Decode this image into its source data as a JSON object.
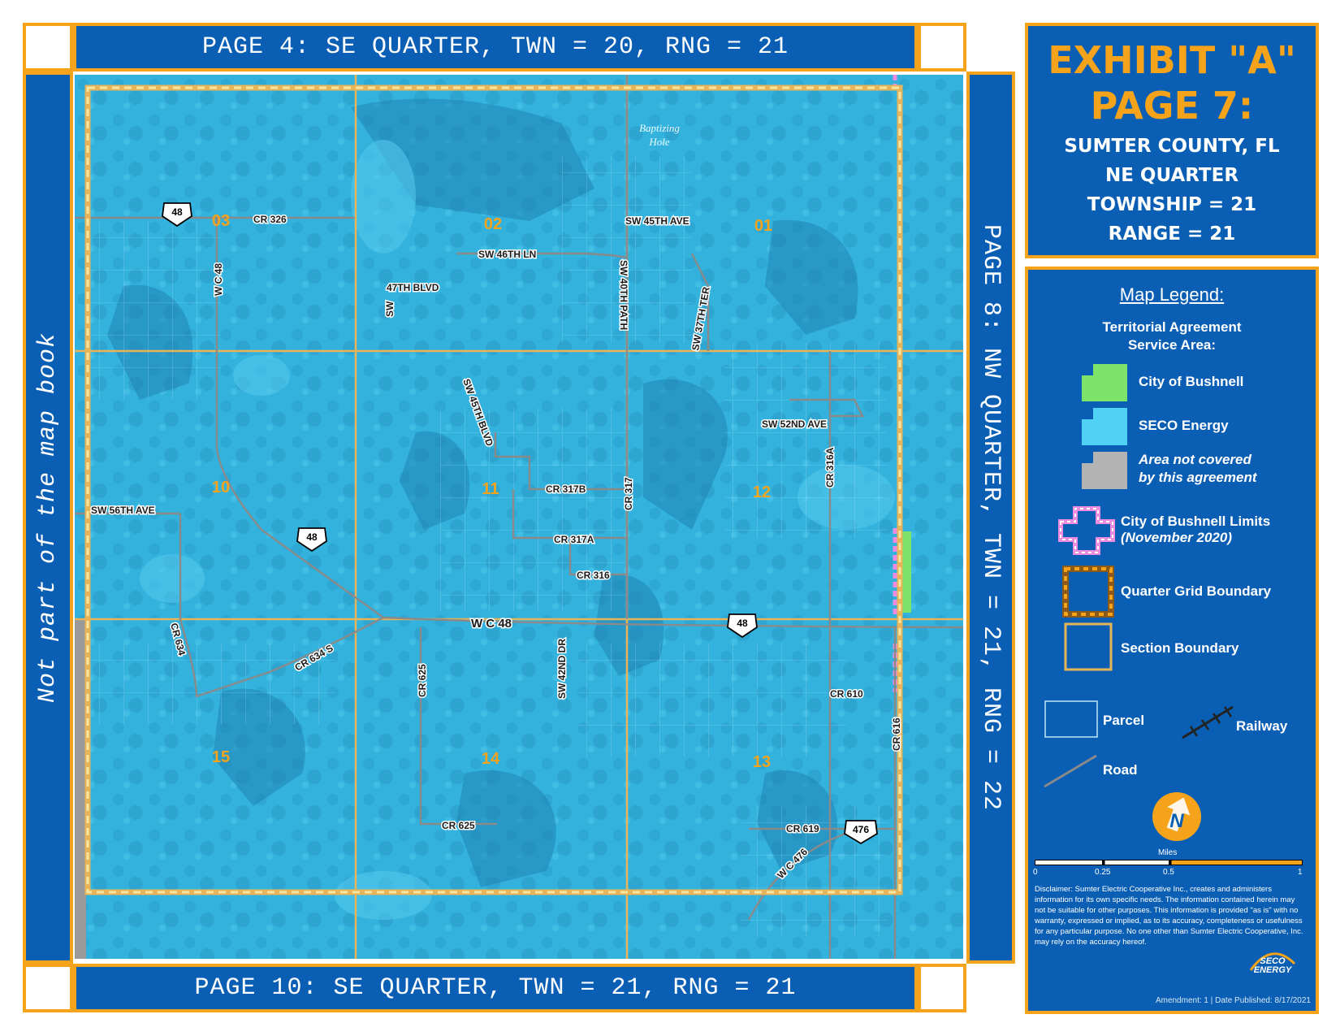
{
  "nav": {
    "top": "PAGE 4: SE QUARTER, TWN = 20, RNG = 21",
    "bottom": "PAGE 10: SE QUARTER, TWN = 21, RNG = 21",
    "right": "PAGE 8: NW QUARTER, TWN = 21, RNG = 22",
    "left": "Not part of the map book"
  },
  "title": {
    "exhibit": "EXHIBIT \"A\"",
    "page": "PAGE 7:",
    "county": "SUMTER COUNTY, FL",
    "quarter": "NE QUARTER",
    "township": "TOWNSHIP = 21",
    "range": "RANGE = 21"
  },
  "legend": {
    "title": "Map Legend:",
    "subtitle_1": "Territorial Agreement",
    "subtitle_2": "Service Area:",
    "items": {
      "bushnell": "City of Bushnell",
      "seco": "SECO Energy",
      "not_covered_1": "Area not covered",
      "not_covered_2": "by this agreement",
      "limits_1": "City of Bushnell Limits",
      "limits_2": "(November 2020)",
      "quarter_grid": "Quarter Grid Boundary",
      "section": "Section Boundary",
      "parcel": "Parcel",
      "railway": "Railway",
      "road": "Road"
    },
    "scale": {
      "unit": "Miles",
      "ticks": [
        "0",
        "0.25",
        "0.5",
        "1"
      ]
    },
    "north": "N",
    "colors": {
      "bushnell": "#7ee36a",
      "seco": "#4fd2f5",
      "not_covered": "#b3b3b3",
      "limits": "#ee8ce0",
      "frame": "#f5a31a",
      "panel": "#0a5fb4"
    }
  },
  "disclaimer": "Disclaimer: Sumter Electric Cooperative Inc., creates and administers information for its own specific needs. The information contained herein may not be suitable for other purposes. This information is provided \"as is\" with no warranty, expressed or implied, as to its accuracy, completeness or usefulness for any particular purpose. No one other than Sumter Electric Cooperative, Inc. may rely on the accuracy hereof.",
  "logo": "SECO ENERGY",
  "footer": "Amendment: 1 | Date Published: 8/17/2021",
  "map": {
    "water_label_1": "Baptizing",
    "water_label_2": "Hole",
    "sections": [
      "03",
      "02",
      "01",
      "10",
      "11",
      "12",
      "15",
      "14",
      "13"
    ],
    "roads": {
      "cr326": "CR 326",
      "sw45ave": "SW 45TH AVE",
      "sw46ln": "SW 46TH LN",
      "wc48v": "W C 48",
      "b47": "47TH  BLVD",
      "sw": "SW",
      "sw40path": "SW 40TH PATH",
      "sw37ter": "SW 37TH TER",
      "sw45blvd": "SW 45TH BLVD",
      "sw52ave": "SW 52ND AVE",
      "cr316a": "CR 316A",
      "sw56ave": "SW 56TH AVE",
      "cr317b": "CR 317B",
      "cr317": "CR 317",
      "cr317a": "CR 317A",
      "cr316": "CR 316",
      "wc48h": "W C 48",
      "cr634": "CR 634",
      "cr634s": "CR 634 S",
      "cr625v": "CR 625",
      "sw42dr": "SW 42ND DR",
      "cr610": "CR 610",
      "cr616": "CR 616",
      "cr625h": "CR 625",
      "cr619": "CR 619",
      "wc476": "W C 476"
    },
    "shields": {
      "s48a": "48",
      "s48b": "48",
      "s48c": "48",
      "s476": "476"
    }
  }
}
